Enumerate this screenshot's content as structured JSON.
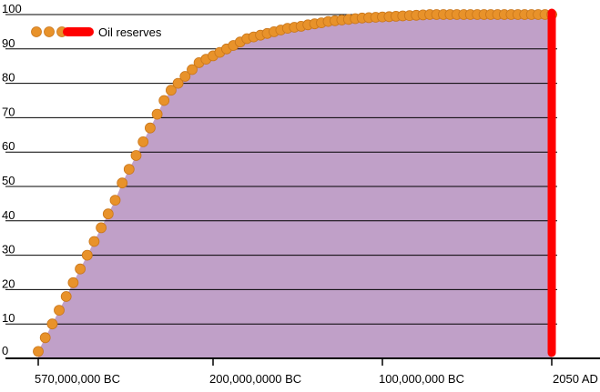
{
  "chart_data": {
    "type": "area",
    "title": "",
    "xlabel": "",
    "ylabel": "",
    "ylim": [
      0,
      100
    ],
    "y_ticks": [
      0,
      10,
      20,
      30,
      40,
      50,
      60,
      70,
      80,
      90,
      100
    ],
    "grid": true,
    "legend_position": "top-left",
    "x_categories": [
      "570,000,000 BC",
      "200,000,0000 BC",
      "100,000,000 BC",
      "2050 AD"
    ],
    "series": [
      {
        "name": "",
        "kind": "area-with-dots",
        "x_index": [
          0,
          0.04,
          0.08,
          0.12,
          0.16,
          0.2,
          0.24,
          0.28,
          0.32,
          0.36,
          0.4,
          0.44,
          0.48,
          0.52,
          0.56,
          0.6,
          0.64,
          0.68,
          0.72,
          0.76,
          0.8,
          0.84,
          0.88,
          0.92,
          0.96,
          1.0,
          1.04,
          1.08,
          1.12,
          1.16,
          1.2,
          1.24,
          1.28,
          1.32,
          1.36,
          1.4,
          1.44,
          1.48,
          1.52,
          1.56,
          1.6,
          1.64,
          1.68,
          1.72,
          1.76,
          1.8,
          1.84,
          1.88,
          1.92,
          1.96,
          2.0,
          2.04,
          2.08,
          2.12,
          2.16,
          2.2,
          2.24,
          2.28,
          2.32,
          2.36,
          2.4,
          2.44,
          2.48,
          2.52,
          2.56,
          2.6,
          2.64,
          2.68,
          2.72,
          2.76,
          2.8,
          2.84,
          2.88,
          2.92,
          2.96,
          3.0
        ],
        "values": [
          2,
          6,
          10,
          14,
          18,
          22,
          26,
          30,
          34,
          38,
          42,
          46,
          51,
          55,
          59,
          63,
          67,
          71,
          75,
          78,
          80,
          82,
          84,
          86,
          87,
          88,
          89,
          90,
          91,
          92,
          93,
          93.5,
          94,
          94.5,
          95,
          95.5,
          96,
          96.3,
          96.6,
          97,
          97.3,
          97.6,
          98,
          98.2,
          98.4,
          98.6,
          98.8,
          99,
          99.1,
          99.2,
          99.3,
          99.4,
          99.5,
          99.6,
          99.7,
          99.8,
          99.9,
          100,
          100,
          100,
          100,
          100,
          100,
          100,
          100,
          100,
          100,
          100,
          100,
          100,
          100,
          100,
          100,
          100,
          100,
          100
        ],
        "fill_color": "#c0a0c8",
        "dot_color": "#e8922a"
      }
    ],
    "legend": {
      "label": "Oil reserves",
      "dot_color": "#e8922a",
      "bar_color": "#ff0000"
    },
    "marker_line": {
      "x_category": "2050 AD",
      "color": "#ff0000"
    }
  }
}
